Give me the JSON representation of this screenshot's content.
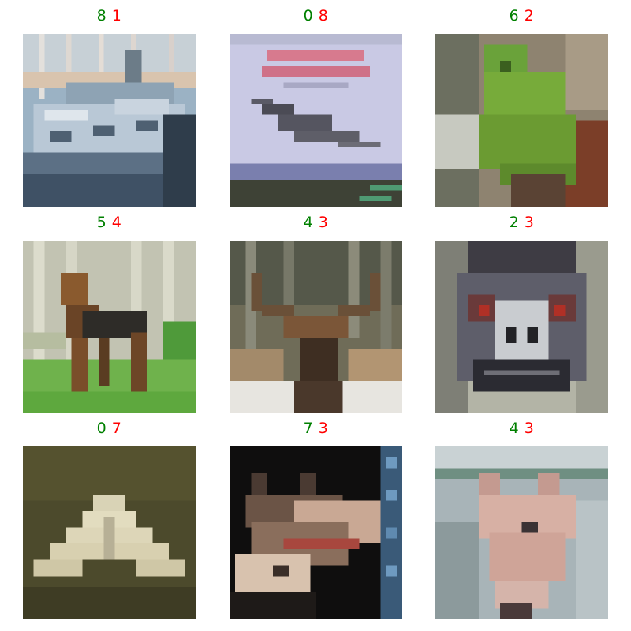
{
  "grid": {
    "label_colors": {
      "true_label": "#008000",
      "pred_label": "#ff0000"
    },
    "cells": [
      {
        "true_label": "8",
        "pred_label": "1"
      },
      {
        "true_label": "0",
        "pred_label": "8"
      },
      {
        "true_label": "6",
        "pred_label": "2"
      },
      {
        "true_label": "5",
        "pred_label": "4"
      },
      {
        "true_label": "4",
        "pred_label": "3"
      },
      {
        "true_label": "2",
        "pred_label": "3"
      },
      {
        "true_label": "0",
        "pred_label": "7"
      },
      {
        "true_label": "7",
        "pred_label": "3"
      },
      {
        "true_label": "4",
        "pred_label": "3"
      }
    ]
  }
}
